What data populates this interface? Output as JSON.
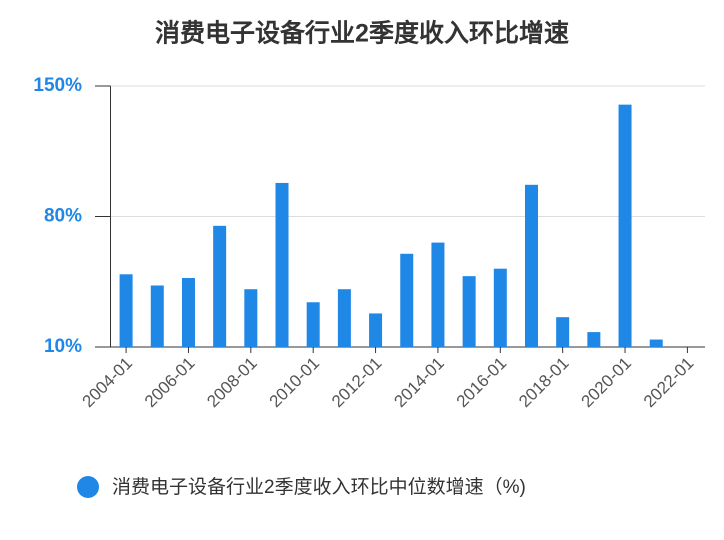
{
  "chart_data": {
    "type": "bar",
    "title": "消费电子设备行业2季度收入环比增速",
    "categories": [
      "2004-01",
      null,
      "2006-01",
      null,
      "2008-01",
      null,
      "2010-01",
      null,
      "2012-01",
      null,
      "2014-01",
      null,
      "2016-01",
      null,
      "2018-01",
      null,
      "2020-01",
      null,
      "2022-01"
    ],
    "series": [
      {
        "name": "消费电子设备行业2季度收入环比中位数增速（%)",
        "color": "#1f87e6",
        "values": [
          49,
          43,
          47,
          75,
          41,
          98,
          34,
          41,
          28,
          60,
          66,
          48,
          52,
          97,
          26,
          18,
          140,
          14,
          null
        ]
      }
    ],
    "ylim": [
      10,
      150
    ],
    "yticks": [
      {
        "value": 10,
        "label": "10%"
      },
      {
        "value": 80,
        "label": "80%"
      },
      {
        "value": 150,
        "label": "150%"
      }
    ],
    "grid": true
  }
}
